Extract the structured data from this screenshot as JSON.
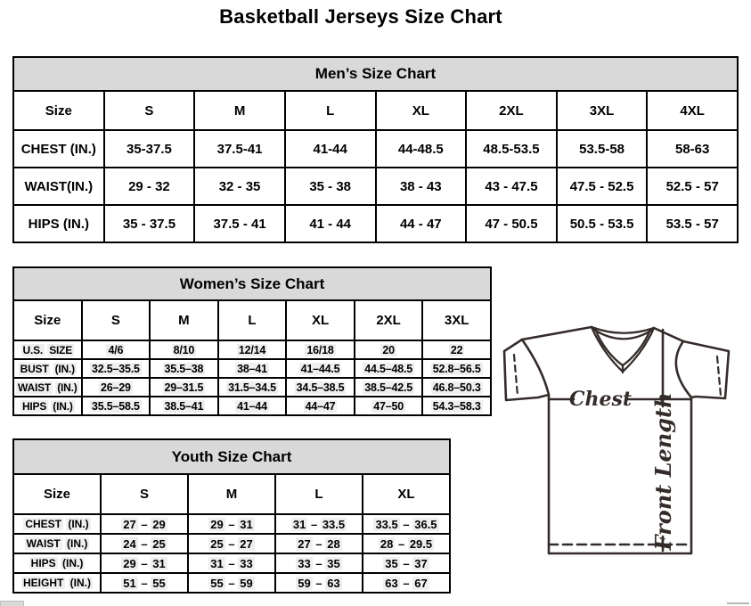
{
  "page": {
    "title": "Basketball Jerseys Size Chart"
  },
  "colors": {
    "table_header_bg": "#d9d9d9",
    "border": "#000000",
    "diagram_line": "#342c2a",
    "value_highlight": "#efefef"
  },
  "tables": [
    {
      "id": "mens",
      "title": "Men’s Size Chart",
      "columns": [
        "Size",
        "S",
        "M",
        "L",
        "XL",
        "2XL",
        "3XL",
        "4XL"
      ],
      "rows": [
        {
          "label": "CHEST (IN.)",
          "values": [
            "35-37.5",
            "37.5-41",
            "41-44",
            "44-48.5",
            "48.5-53.5",
            "53.5-58",
            "58-63"
          ]
        },
        {
          "label": "WAIST(IN.)",
          "values": [
            "29 - 32",
            "32 - 35",
            "35 - 38",
            "38 - 43",
            "43 - 47.5",
            "47.5 - 52.5",
            "52.5 - 57"
          ]
        },
        {
          "label": "HIPS (IN.)",
          "values": [
            "35 - 37.5",
            "37.5 - 41",
            "41 - 44",
            "44 - 47",
            "47 - 50.5",
            "50.5 - 53.5",
            "53.5 - 57"
          ]
        }
      ]
    },
    {
      "id": "womens",
      "title": "Women’s Size Chart",
      "columns": [
        "Size",
        "S",
        "M",
        "L",
        "XL",
        "2XL",
        "3XL"
      ],
      "rows": [
        {
          "label": "U.S. SIZE",
          "values": [
            "4/6",
            "8/10",
            "12/14",
            "16/18",
            "20",
            "22"
          ]
        },
        {
          "label": "BUST (IN.)",
          "values": [
            "32.5–35.5",
            "35.5–38",
            "38–41",
            "41–44.5",
            "44.5–48.5",
            "52.8–56.5"
          ]
        },
        {
          "label": "WAIST (IN.)",
          "values": [
            "26–29",
            "29–31.5",
            "31.5–34.5",
            "34.5–38.5",
            "38.5–42.5",
            "46.8–50.3"
          ]
        },
        {
          "label": "HIPS (IN.)",
          "values": [
            "35.5–58.5",
            "38.5–41",
            "41–44",
            "44–47",
            "47–50",
            "54.3–58.3"
          ]
        }
      ]
    },
    {
      "id": "youth",
      "title": "Youth Size Chart",
      "columns": [
        "Size",
        "S",
        "M",
        "L",
        "XL"
      ],
      "rows": [
        {
          "label": "CHEST (IN.)",
          "values": [
            "27 – 29",
            "29 – 31",
            "31 – 33.5",
            "33.5 – 36.5"
          ]
        },
        {
          "label": "WAIST (IN.)",
          "values": [
            "24 – 25",
            "25 – 27",
            "27 – 28",
            "28 – 29.5"
          ]
        },
        {
          "label": "HIPS (IN.)",
          "values": [
            "29 – 31",
            "31 – 33",
            "33 – 35",
            "35 – 37"
          ]
        },
        {
          "label": "HEIGHT (IN.)",
          "values": [
            "51 – 55",
            "55 – 59",
            "59 – 63",
            "63 – 67"
          ]
        }
      ]
    }
  ],
  "diagram": {
    "chest_label": "Chest",
    "front_length_label": "Front Length"
  }
}
